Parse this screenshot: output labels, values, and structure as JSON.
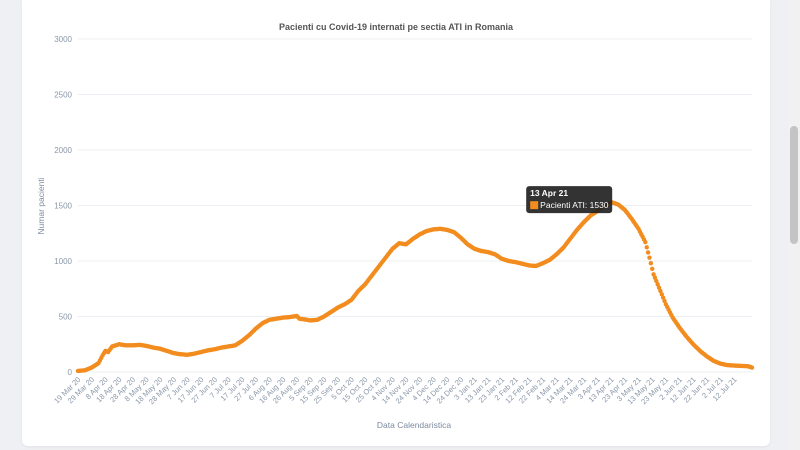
{
  "chart_data": {
    "type": "scatter",
    "title": "Pacienti cu Covid-19 internati pe sectia ATI in Romania",
    "xlabel": "Data Calendaristica",
    "ylabel": "Numar pacienti",
    "ylim": [
      0,
      3000
    ],
    "yticks": [
      "0",
      "500",
      "1000",
      "1500",
      "2000",
      "2500",
      "3000"
    ],
    "xticks": [
      "19 Mar 20",
      "29 Mar 20",
      "8 Apr 20",
      "18 Apr 20",
      "28 Apr 20",
      "8 May 20",
      "18 May 20",
      "28 May 20",
      "7 Jun 20",
      "17 Jun 20",
      "27 Jun 20",
      "7 Jul 20",
      "17 Jul 20",
      "27 Jul 20",
      "6 Aug 20",
      "16 Aug 20",
      "26 Aug 20",
      "5 Sep 20",
      "15 Sep 20",
      "25 Sep 20",
      "5 Oct 20",
      "15 Oct 20",
      "25 Oct 20",
      "4 Nov 20",
      "14 Nov 20",
      "24 Nov 20",
      "4 Dec 20",
      "14 Dec 20",
      "24 Dec 20",
      "3 Jan 21",
      "13 Jan 21",
      "23 Jan 21",
      "2 Feb 21",
      "12 Feb 21",
      "22 Feb 21",
      "4 Mar 21",
      "14 Mar 21",
      "24 Mar 21",
      "3 Apr 21",
      "13 Apr 21",
      "23 Apr 21",
      "3 May 21",
      "13 May 21",
      "23 May 21",
      "2 Jun 21",
      "12 Jun 21",
      "22 Jun 21",
      "2 Jul 21",
      "12 Jul 21"
    ],
    "series": [
      {
        "name": "Pacienti ATI",
        "color": "#f28c1e",
        "points": [
          [
            0,
            10
          ],
          [
            5,
            15
          ],
          [
            10,
            40
          ],
          [
            15,
            80
          ],
          [
            18,
            150
          ],
          [
            20,
            190
          ],
          [
            22,
            180
          ],
          [
            25,
            230
          ],
          [
            30,
            250
          ],
          [
            35,
            240
          ],
          [
            40,
            240
          ],
          [
            45,
            245
          ],
          [
            50,
            235
          ],
          [
            55,
            220
          ],
          [
            60,
            210
          ],
          [
            65,
            190
          ],
          [
            70,
            170
          ],
          [
            75,
            160
          ],
          [
            80,
            155
          ],
          [
            85,
            165
          ],
          [
            90,
            180
          ],
          [
            95,
            195
          ],
          [
            100,
            205
          ],
          [
            105,
            220
          ],
          [
            110,
            230
          ],
          [
            115,
            240
          ],
          [
            120,
            280
          ],
          [
            125,
            330
          ],
          [
            130,
            390
          ],
          [
            135,
            440
          ],
          [
            140,
            470
          ],
          [
            145,
            480
          ],
          [
            150,
            490
          ],
          [
            155,
            495
          ],
          [
            160,
            505
          ],
          [
            162,
            480
          ],
          [
            165,
            475
          ],
          [
            170,
            465
          ],
          [
            175,
            470
          ],
          [
            180,
            500
          ],
          [
            185,
            540
          ],
          [
            190,
            580
          ],
          [
            195,
            610
          ],
          [
            200,
            650
          ],
          [
            205,
            730
          ],
          [
            210,
            790
          ],
          [
            215,
            870
          ],
          [
            220,
            950
          ],
          [
            225,
            1030
          ],
          [
            230,
            1110
          ],
          [
            235,
            1160
          ],
          [
            240,
            1150
          ],
          [
            245,
            1200
          ],
          [
            250,
            1240
          ],
          [
            255,
            1270
          ],
          [
            260,
            1285
          ],
          [
            265,
            1290
          ],
          [
            270,
            1280
          ],
          [
            275,
            1260
          ],
          [
            280,
            1210
          ],
          [
            285,
            1150
          ],
          [
            290,
            1110
          ],
          [
            295,
            1090
          ],
          [
            300,
            1080
          ],
          [
            305,
            1060
          ],
          [
            310,
            1020
          ],
          [
            315,
            1000
          ],
          [
            320,
            990
          ],
          [
            325,
            975
          ],
          [
            330,
            960
          ],
          [
            335,
            955
          ],
          [
            340,
            980
          ],
          [
            345,
            1010
          ],
          [
            350,
            1060
          ],
          [
            355,
            1120
          ],
          [
            360,
            1200
          ],
          [
            365,
            1280
          ],
          [
            370,
            1350
          ],
          [
            375,
            1410
          ],
          [
            380,
            1450
          ],
          [
            385,
            1500
          ],
          [
            390,
            1530
          ],
          [
            395,
            1510
          ],
          [
            400,
            1460
          ],
          [
            405,
            1380
          ],
          [
            410,
            1290
          ],
          [
            415,
            1170
          ],
          [
            418,
            1030
          ],
          [
            421,
            880
          ],
          [
            425,
            760
          ],
          [
            430,
            610
          ],
          [
            435,
            490
          ],
          [
            440,
            400
          ],
          [
            445,
            320
          ],
          [
            450,
            250
          ],
          [
            455,
            190
          ],
          [
            460,
            140
          ],
          [
            465,
            100
          ],
          [
            470,
            75
          ],
          [
            475,
            62
          ],
          [
            480,
            58
          ],
          [
            485,
            55
          ],
          [
            490,
            52
          ],
          [
            493,
            40
          ]
        ]
      }
    ],
    "tooltip": {
      "date": "13 Apr 21",
      "label": "Pacienti ATI: 1530",
      "day": 390,
      "value": 1530
    },
    "grid": true,
    "legend": "none"
  }
}
